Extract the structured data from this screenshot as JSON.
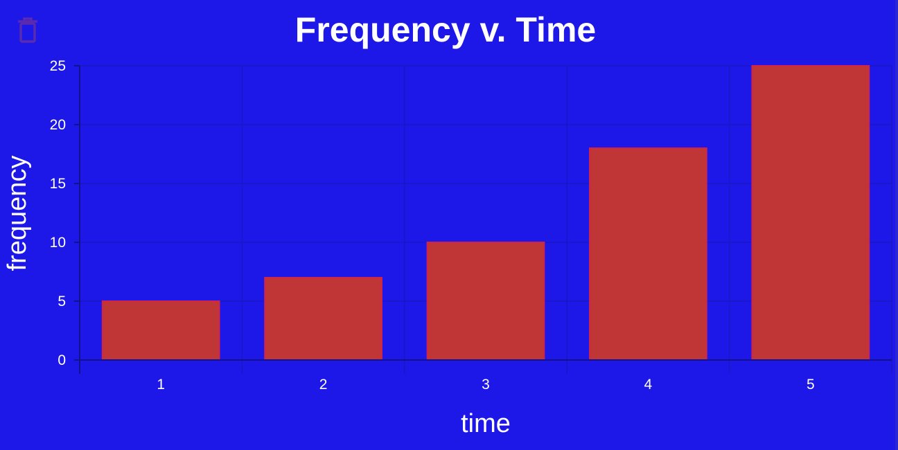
{
  "toolbar": {
    "delete_icon": "trash-icon",
    "delete_icon_color": "#5a2bb0"
  },
  "colors": {
    "background": "#1d18e8",
    "bar_fill": "#c03535",
    "bar_stroke": "#d0254a",
    "text": "#ffffff"
  },
  "chart_data": {
    "type": "bar",
    "title": "Frequency v. Time",
    "xlabel": "time",
    "ylabel": "frequency",
    "categories": [
      "1",
      "2",
      "3",
      "4",
      "5"
    ],
    "values": [
      5,
      7,
      10,
      18,
      25
    ],
    "ylim": [
      0,
      25
    ],
    "yticks": [
      0,
      5,
      10,
      15,
      20,
      25
    ],
    "grid": true,
    "legend": "none"
  }
}
